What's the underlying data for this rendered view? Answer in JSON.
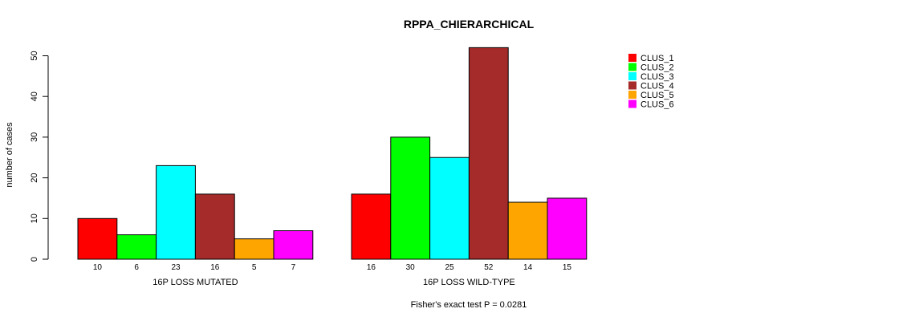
{
  "chart_data": {
    "type": "bar",
    "title": "RPPA_CHIERARCHICAL",
    "ylabel": "number of cases",
    "ylim": [
      0,
      52
    ],
    "yticks": [
      0,
      10,
      20,
      30,
      40,
      50
    ],
    "grid": false,
    "legend_position": "top-right",
    "footer": "Fisher's exact test P = 0.0281",
    "series": [
      {
        "name": "CLUS_1",
        "color": "#ff0000"
      },
      {
        "name": "CLUS_2",
        "color": "#00ff00"
      },
      {
        "name": "CLUS_3",
        "color": "#00ffff"
      },
      {
        "name": "CLUS_4",
        "color": "#a52a2a"
      },
      {
        "name": "CLUS_5",
        "color": "#ffa500"
      },
      {
        "name": "CLUS_6",
        "color": "#ff00ff"
      }
    ],
    "groups": [
      {
        "label": "16P LOSS MUTATED",
        "values": [
          10,
          6,
          23,
          16,
          5,
          7
        ]
      },
      {
        "label": "16P LOSS WILD-TYPE",
        "values": [
          16,
          30,
          25,
          52,
          14,
          15
        ]
      }
    ]
  }
}
